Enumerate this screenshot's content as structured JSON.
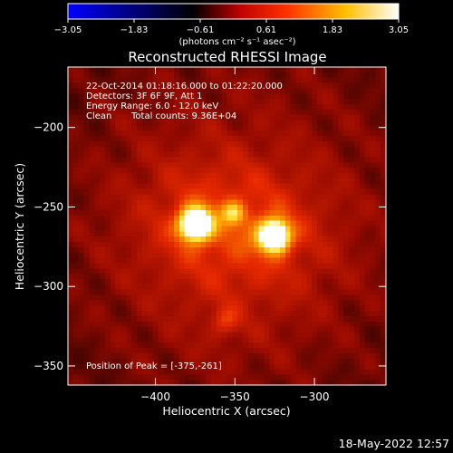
{
  "chart_data": {
    "type": "heatmap",
    "title": "Reconstructed RHESSI Image",
    "xlabel": "Heliocentric X (arcsec)",
    "ylabel": "Heliocentric Y (arcsec)",
    "xlim": [
      -455,
      -410
    ],
    "ylim": [
      -362,
      -162
    ],
    "x_ticks": [
      {
        "value": -400,
        "label": "−400"
      },
      {
        "value": -350,
        "label": "−350"
      },
      {
        "value": -300,
        "label": "−300"
      }
    ],
    "y_ticks": [
      {
        "value": -200,
        "label": "−200"
      },
      {
        "value": -250,
        "label": "−250"
      },
      {
        "value": -300,
        "label": "−300"
      },
      {
        "value": -350,
        "label": "−350"
      }
    ],
    "colorbar": {
      "min": -3.05,
      "max": 3.05,
      "tick_values": [
        -3.05,
        -1.83,
        -0.61,
        0.61,
        1.83,
        3.05
      ],
      "tick_labels": [
        "−3.05",
        "−1.83",
        "−0.61",
        "0.61",
        "1.83",
        "3.05"
      ],
      "unit_label": "(photons cm⁻² s⁻¹ asec⁻²)",
      "colors": [
        "#0000ff",
        "#000000",
        "#ff0000",
        "#ffff00",
        "#ffffff"
      ]
    },
    "sources": [
      {
        "x": -375,
        "y": -261,
        "sigma": 7,
        "amplitude": 1.0
      },
      {
        "x": -325,
        "y": -268,
        "sigma": 7,
        "amplitude": 0.92
      },
      {
        "x": -351,
        "y": -254,
        "sigma": 5,
        "amplitude": 0.35
      },
      {
        "x": -356,
        "y": -322,
        "sigma": 6,
        "amplitude": 0.22
      }
    ],
    "annotations": {
      "line1": "22-Oct-2014 01:18:16.000 to 01:22:20.000",
      "line2": "Detectors: 3F 6F 9F, Att 1",
      "line3": "Energy Range: 6.0 - 12.0 keV",
      "line4_left": "Clean",
      "line4_right": "Total counts: 9.36E+04",
      "peak": "Position of Peak = [-375,-261]"
    }
  },
  "timestamp": "18-May-2022 12:57"
}
